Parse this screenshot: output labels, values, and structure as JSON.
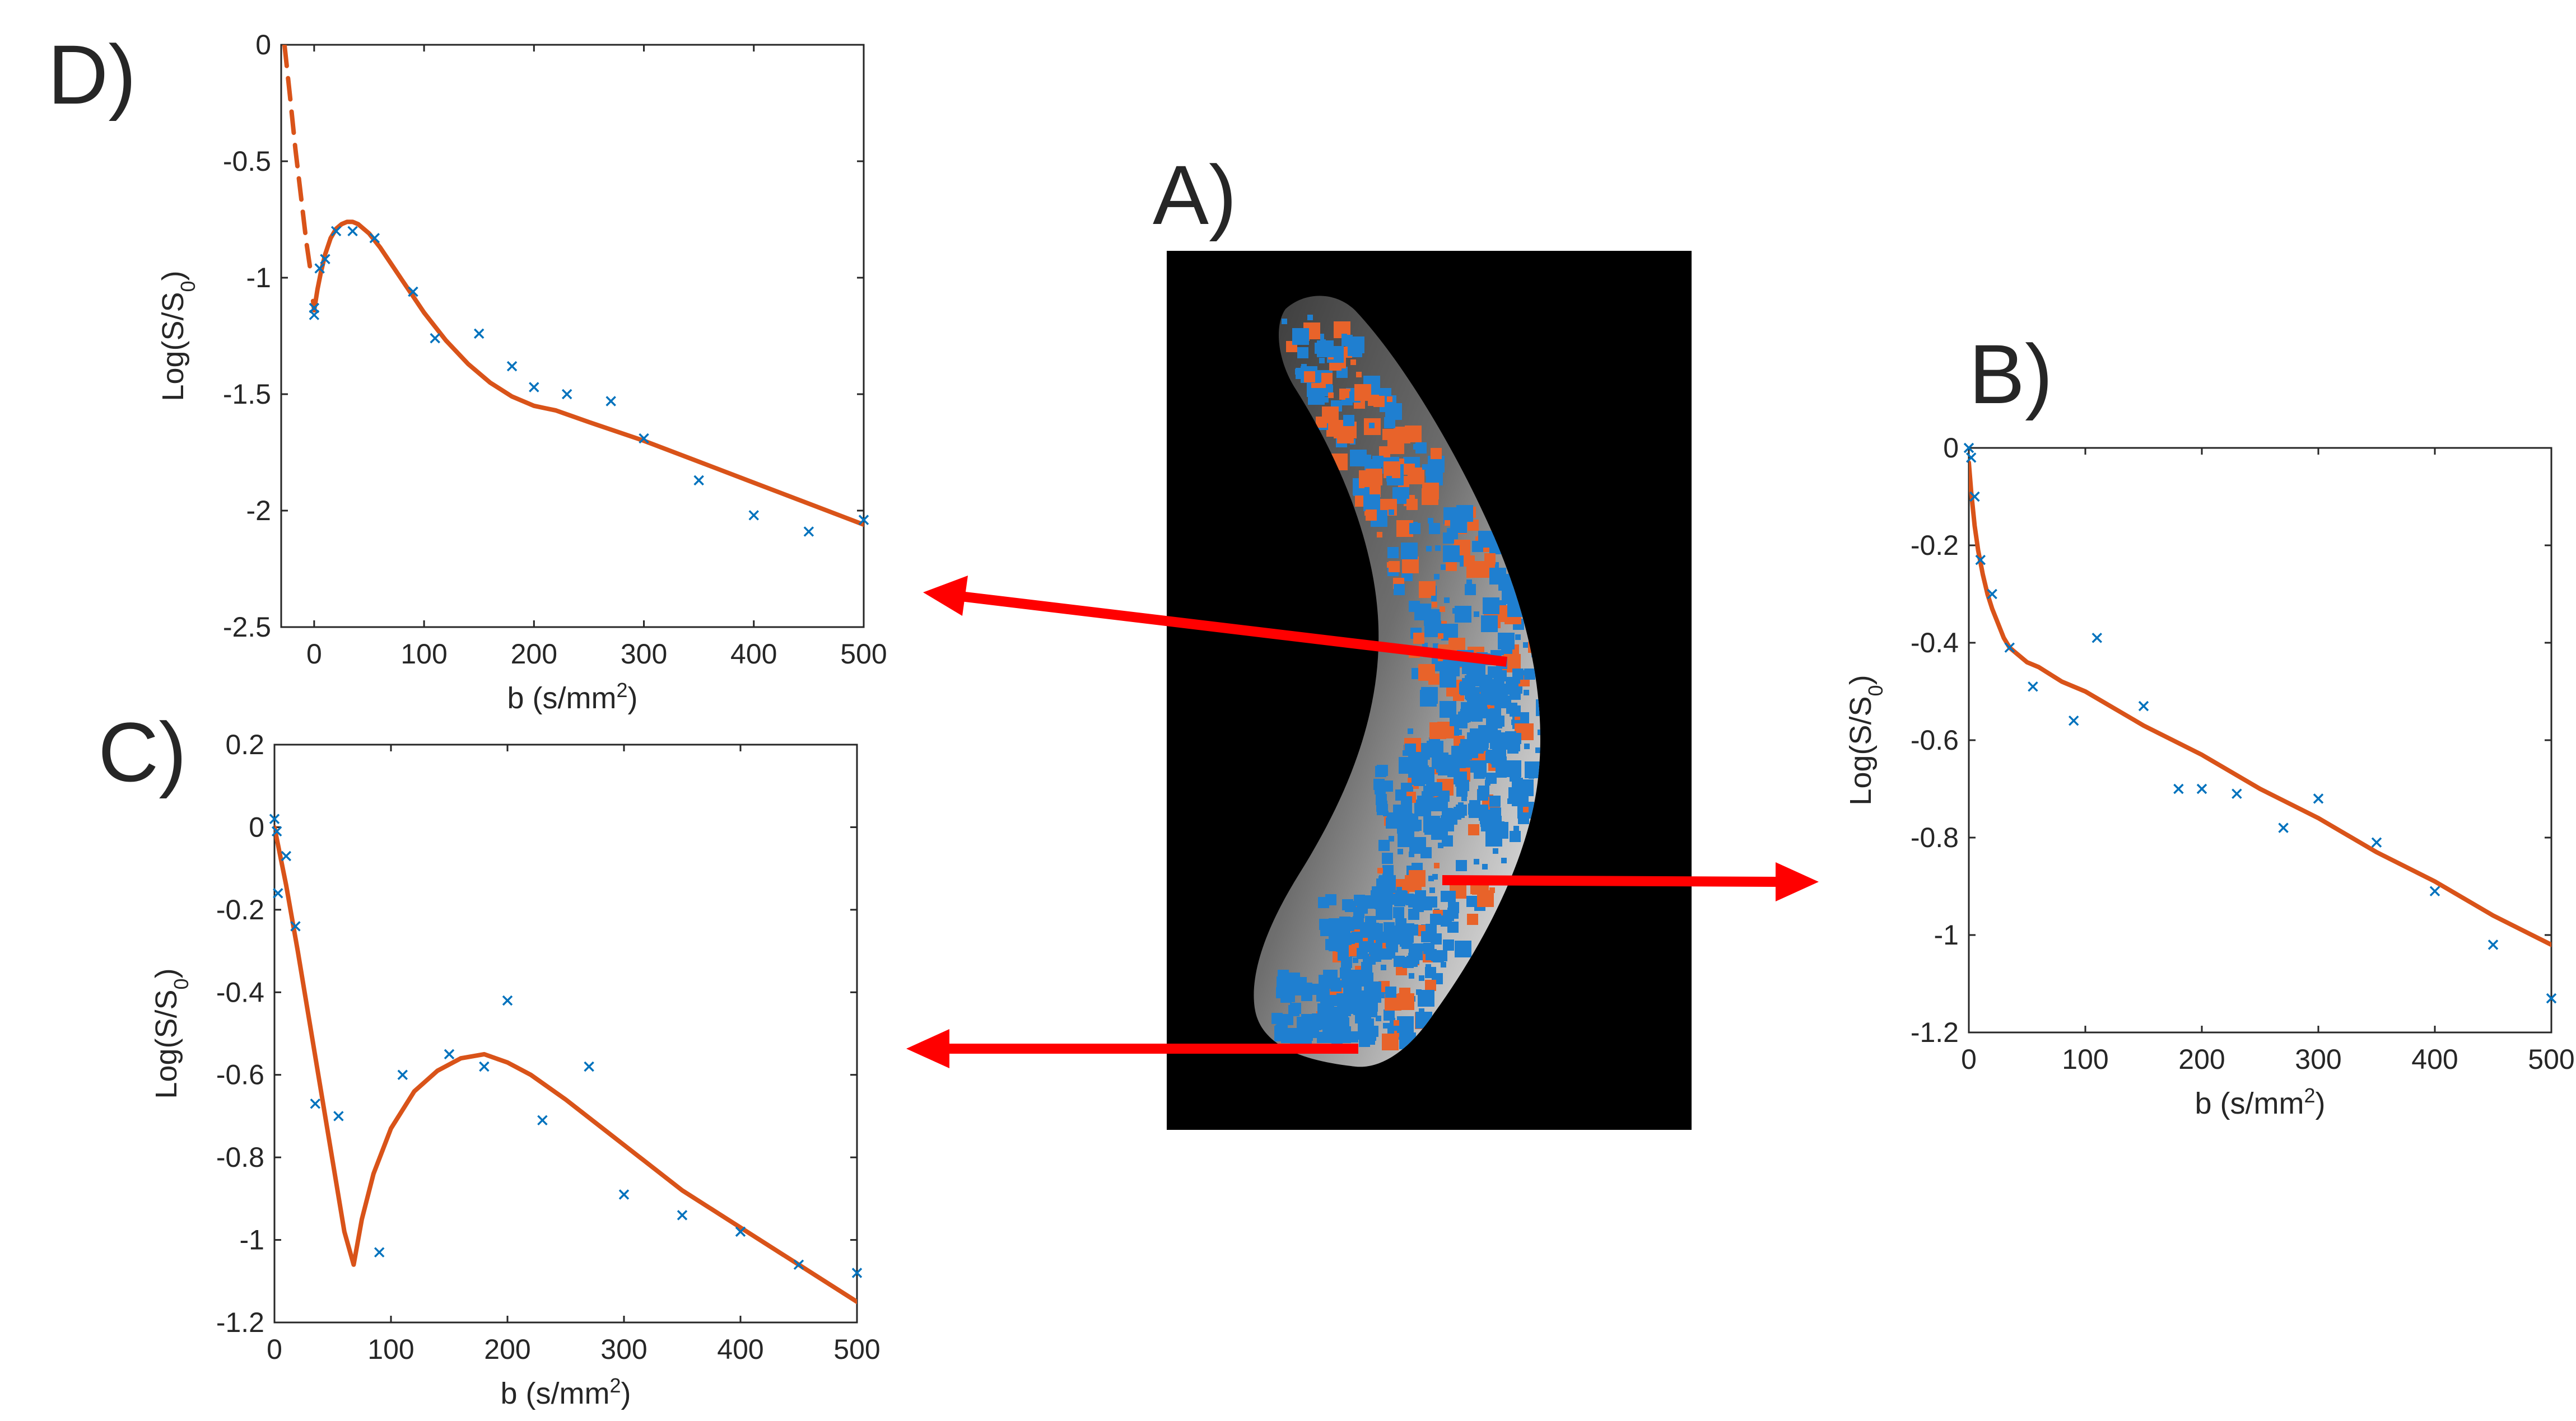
{
  "panels": {
    "A": {
      "label": "A)"
    },
    "B": {
      "label": "B)"
    },
    "C": {
      "label": "C)"
    },
    "D": {
      "label": "D)"
    }
  },
  "colors": {
    "fit_line": "#d95319",
    "data_points": "#0072bd",
    "arrow": "#ff0000",
    "image_background": "#000000",
    "map_orange": "#e8632a",
    "map_blue": "#1f7fd0"
  },
  "chart_data": [
    {
      "id": "D",
      "type": "scatter",
      "xlabel": "b (s/mm",
      "xlabel_sup": "2",
      "xlabel_tail": ")",
      "ylabel": "Log(S/S",
      "ylabel_sub": "0",
      "ylabel_tail": ")",
      "xlim": [
        -30,
        500
      ],
      "ylim": [
        -2.5,
        0
      ],
      "xticks": [
        0,
        100,
        200,
        300,
        400,
        500
      ],
      "yticks": [
        0,
        -0.5,
        -1,
        -1.5,
        -2,
        -2.5
      ],
      "xtick_labels": [
        "0",
        "100",
        "200",
        "300",
        "400",
        "500"
      ],
      "ytick_labels": [
        "0",
        "-0.5",
        "-1",
        "-1.5",
        "-2",
        "-2.5"
      ],
      "series": [
        {
          "style": "markers-x",
          "x": [
            0,
            0,
            5,
            10,
            20,
            35,
            55,
            90,
            110,
            150,
            180,
            200,
            230,
            270,
            300,
            350,
            400,
            450,
            500
          ],
          "y": [
            -1.13,
            -1.16,
            -0.96,
            -0.92,
            -0.8,
            -0.8,
            -0.83,
            -1.06,
            -1.26,
            -1.24,
            -1.38,
            -1.47,
            -1.5,
            -1.53,
            -1.69,
            -1.87,
            -2.02,
            -2.09,
            -2.04
          ]
        },
        {
          "style": "dashed-line",
          "x": [
            -27,
            -22,
            -17,
            -12,
            -7,
            -3
          ],
          "y": [
            0,
            -0.22,
            -0.45,
            -0.65,
            -0.85,
            -0.98
          ]
        },
        {
          "style": "solid-line",
          "x": [
            -1,
            0,
            3,
            6,
            10,
            15,
            20,
            25,
            30,
            35,
            40,
            50,
            60,
            70,
            80,
            90,
            100,
            120,
            140,
            160,
            180,
            200,
            210,
            220,
            250,
            300,
            350,
            400,
            450,
            500
          ],
          "y": [
            -1.1,
            -1.14,
            -1.05,
            -0.98,
            -0.9,
            -0.83,
            -0.79,
            -0.77,
            -0.76,
            -0.76,
            -0.77,
            -0.81,
            -0.87,
            -0.94,
            -1.01,
            -1.08,
            -1.15,
            -1.27,
            -1.37,
            -1.45,
            -1.51,
            -1.55,
            -1.56,
            -1.57,
            -1.62,
            -1.7,
            -1.79,
            -1.88,
            -1.97,
            -2.06
          ]
        }
      ]
    },
    {
      "id": "B",
      "type": "scatter",
      "xlabel": "b (s/mm",
      "xlabel_sup": "2",
      "xlabel_tail": ")",
      "ylabel": "Log(S/S",
      "ylabel_sub": "0",
      "ylabel_tail": ")",
      "xlim": [
        0,
        500
      ],
      "ylim": [
        -1.2,
        0
      ],
      "xticks": [
        0,
        100,
        200,
        300,
        400,
        500
      ],
      "yticks": [
        0,
        -0.2,
        -0.4,
        -0.6,
        -0.8,
        -1,
        -1.2
      ],
      "xtick_labels": [
        "0",
        "100",
        "200",
        "300",
        "400",
        "500"
      ],
      "ytick_labels": [
        "0",
        "-0.2",
        "-0.4",
        "-0.6",
        "-0.8",
        "-1",
        "-1.2"
      ],
      "series": [
        {
          "style": "markers-x",
          "x": [
            0,
            2,
            5,
            10,
            20,
            35,
            55,
            90,
            110,
            150,
            180,
            200,
            230,
            270,
            300,
            350,
            400,
            450,
            500
          ],
          "y": [
            0,
            -0.02,
            -0.1,
            -0.23,
            -0.3,
            -0.41,
            -0.49,
            -0.56,
            -0.39,
            -0.53,
            -0.7,
            -0.7,
            -0.71,
            -0.78,
            -0.72,
            -0.81,
            -0.91,
            -1.02,
            -1.13
          ]
        },
        {
          "style": "solid-line",
          "x": [
            0,
            2,
            5,
            8,
            12,
            16,
            20,
            25,
            30,
            35,
            40,
            50,
            60,
            80,
            100,
            150,
            200,
            250,
            300,
            350,
            400,
            450,
            500
          ],
          "y": [
            -0.03,
            -0.09,
            -0.16,
            -0.21,
            -0.26,
            -0.3,
            -0.33,
            -0.36,
            -0.39,
            -0.41,
            -0.42,
            -0.44,
            -0.45,
            -0.48,
            -0.5,
            -0.57,
            -0.63,
            -0.7,
            -0.76,
            -0.83,
            -0.89,
            -0.96,
            -1.02
          ]
        }
      ]
    },
    {
      "id": "C",
      "type": "scatter",
      "xlabel": "b (s/mm",
      "xlabel_sup": "2",
      "xlabel_tail": ")",
      "ylabel": "Log(S/S",
      "ylabel_sub": "0",
      "ylabel_tail": ")",
      "xlim": [
        0,
        500
      ],
      "ylim": [
        -1.2,
        0.2
      ],
      "xticks": [
        0,
        100,
        200,
        300,
        400,
        500
      ],
      "yticks": [
        0.2,
        0,
        -0.2,
        -0.4,
        -0.6,
        -0.8,
        -1,
        -1.2
      ],
      "xtick_labels": [
        "0",
        "100",
        "200",
        "300",
        "400",
        "500"
      ],
      "ytick_labels": [
        "0.2",
        "0",
        "-0.2",
        "-0.4",
        "-0.6",
        "-0.8",
        "-1",
        "-1.2"
      ],
      "series": [
        {
          "style": "markers-x",
          "x": [
            0,
            2,
            3,
            10,
            18,
            35,
            55,
            90,
            110,
            150,
            180,
            200,
            230,
            270,
            300,
            350,
            400,
            450,
            500
          ],
          "y": [
            0.02,
            -0.01,
            -0.16,
            -0.07,
            -0.24,
            -0.67,
            -0.7,
            -1.03,
            -0.6,
            -0.55,
            -0.58,
            -0.42,
            -0.71,
            -0.58,
            -0.89,
            -0.94,
            -0.98,
            -1.06,
            -1.08
          ]
        },
        {
          "style": "solid-line",
          "x": [
            0,
            10,
            20,
            30,
            40,
            50,
            60,
            68,
            75,
            85,
            100,
            120,
            140,
            160,
            180,
            200,
            220,
            250,
            300,
            350,
            400,
            450,
            500
          ],
          "y": [
            0,
            -0.14,
            -0.3,
            -0.47,
            -0.64,
            -0.81,
            -0.98,
            -1.06,
            -0.95,
            -0.84,
            -0.73,
            -0.64,
            -0.59,
            -0.56,
            -0.55,
            -0.57,
            -0.6,
            -0.66,
            -0.77,
            -0.88,
            -0.97,
            -1.06,
            -1.15
          ]
        }
      ]
    }
  ]
}
